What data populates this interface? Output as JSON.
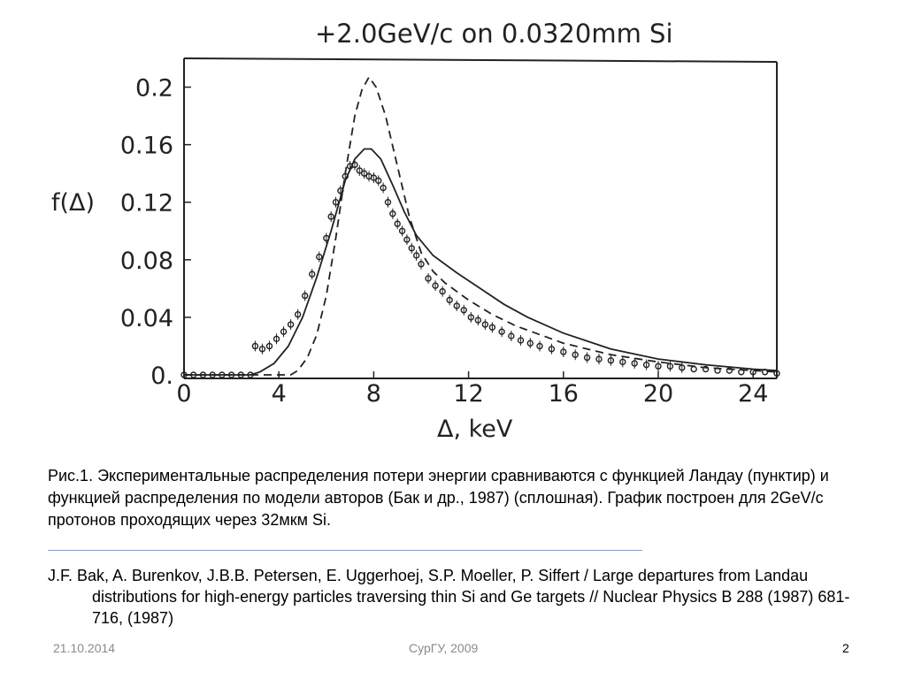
{
  "chart_data": {
    "type": "line",
    "title": "+2.0GeV/c on 0.0320mm  Si",
    "xlabel": "Δ, keV",
    "ylabel": "f(Δ)",
    "xlim": [
      0,
      25
    ],
    "ylim": [
      0,
      0.22
    ],
    "xticks": [
      "0",
      "4",
      "8",
      "12",
      "16",
      "20",
      "24"
    ],
    "yticks": [
      "0.",
      "0.04",
      "0.08",
      "0.12",
      "0.16",
      "0.2"
    ],
    "grid": false,
    "series": [
      {
        "style": "dashed",
        "x": [
          0,
          4.5,
          4.8,
          5.2,
          5.6,
          6.0,
          6.4,
          6.8,
          7.2,
          7.5,
          7.8,
          8.1,
          8.5,
          9.0,
          9.5,
          10.0,
          10.5,
          11,
          12,
          13,
          14,
          16,
          18,
          20,
          22,
          25
        ],
        "y": [
          0,
          0,
          0.003,
          0.012,
          0.028,
          0.055,
          0.095,
          0.14,
          0.18,
          0.198,
          0.207,
          0.2,
          0.18,
          0.145,
          0.11,
          0.085,
          0.072,
          0.064,
          0.052,
          0.042,
          0.034,
          0.022,
          0.014,
          0.009,
          0.005,
          0.002
        ]
      },
      {
        "style": "solid",
        "x": [
          0,
          2.8,
          3.2,
          3.8,
          4.4,
          5.0,
          5.6,
          6.2,
          6.8,
          7.2,
          7.6,
          7.9,
          8.3,
          8.8,
          9.3,
          9.8,
          10.5,
          11.5,
          12.5,
          13.5,
          14.5,
          16,
          18,
          20,
          22,
          24,
          25
        ],
        "y": [
          0,
          0,
          0.002,
          0.008,
          0.02,
          0.04,
          0.068,
          0.1,
          0.135,
          0.15,
          0.157,
          0.157,
          0.15,
          0.132,
          0.113,
          0.097,
          0.083,
          0.071,
          0.06,
          0.049,
          0.04,
          0.029,
          0.018,
          0.011,
          0.007,
          0.004,
          0.003
        ]
      },
      {
        "style": "points",
        "x": [
          0,
          0.4,
          0.8,
          1.2,
          1.6,
          2.0,
          2.4,
          2.8,
          3.0,
          3.3,
          3.6,
          3.9,
          4.2,
          4.5,
          4.8,
          5.1,
          5.4,
          5.7,
          6.0,
          6.2,
          6.4,
          6.6,
          6.8,
          7.0,
          7.2,
          7.4,
          7.6,
          7.8,
          8.0,
          8.2,
          8.4,
          8.6,
          8.8,
          9.0,
          9.2,
          9.4,
          9.6,
          9.8,
          10.0,
          10.3,
          10.6,
          10.9,
          11.2,
          11.5,
          11.8,
          12.1,
          12.4,
          12.7,
          13.0,
          13.4,
          13.8,
          14.2,
          14.6,
          15.0,
          15.5,
          16.0,
          16.5,
          17.0,
          17.5,
          18.0,
          18.5,
          19.0,
          19.5,
          20.0,
          20.5,
          21.0,
          21.5,
          22.0,
          22.5,
          23.0,
          23.5,
          24.0,
          24.5,
          25.0
        ],
        "y": [
          0,
          0,
          0,
          0,
          0,
          0,
          0,
          0,
          0.02,
          0.018,
          0.02,
          0.025,
          0.03,
          0.035,
          0.042,
          0.055,
          0.07,
          0.082,
          0.095,
          0.11,
          0.12,
          0.128,
          0.138,
          0.145,
          0.146,
          0.142,
          0.14,
          0.138,
          0.137,
          0.135,
          0.13,
          0.12,
          0.112,
          0.105,
          0.1,
          0.094,
          0.088,
          0.083,
          0.077,
          0.067,
          0.062,
          0.058,
          0.052,
          0.048,
          0.045,
          0.04,
          0.038,
          0.035,
          0.033,
          0.03,
          0.027,
          0.024,
          0.022,
          0.02,
          0.018,
          0.016,
          0.014,
          0.012,
          0.011,
          0.01,
          0.009,
          0.008,
          0.007,
          0.006,
          0.006,
          0.005,
          0.004,
          0.004,
          0.003,
          0.003,
          0.002,
          0.002,
          0.002,
          0.001
        ]
      }
    ]
  },
  "caption": {
    "text": "Рис.1. Экспериментальные распределения потери энергии сравниваются с функцией Ландау (пунктир) и функцией распределения по  модели авторов (Бак и др., 1987) (сплошная). График построен для 2GeV/c протонов проходящих через 32мкм Si."
  },
  "reference": {
    "text": "J.F. Bak, A. Burenkov, J.B.B. Petersen, E. Uggerhoej, S.P. Moeller, P. Siffert / Large departures from Landau distributions for high-energy particles traversing thin Si and Ge targets // Nuclear Physics B 288 (1987) 681-716, (1987)"
  },
  "footer": {
    "date": "21.10.2014",
    "center": "СурГУ, 2009",
    "page": "2"
  }
}
